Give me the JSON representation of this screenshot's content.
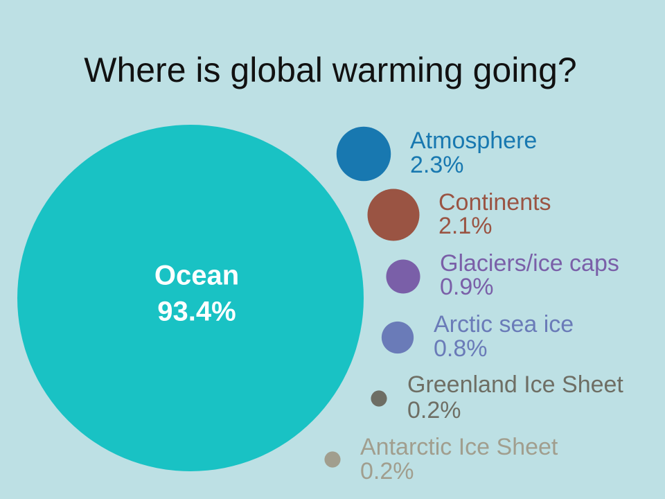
{
  "chart_data": {
    "type": "bubble",
    "title": "Where is global warming going?",
    "categories": [
      "Ocean",
      "Atmosphere",
      "Continents",
      "Glaciers/ice caps",
      "Arctic sea ice",
      "Greenland Ice Sheet",
      "Antarctic Ice Sheet"
    ],
    "values": [
      93.4,
      2.3,
      2.1,
      0.9,
      0.8,
      0.2,
      0.2
    ],
    "value_labels": [
      "93.4%",
      "2.3%",
      "2.1%",
      "0.9%",
      "0.8%",
      "0.2%",
      "0.2%"
    ],
    "colors": [
      "#19c2c4",
      "#1878b0",
      "#9a5443",
      "#7a5fa8",
      "#6a7bb8",
      "#6e6e64",
      "#a19e8e"
    ]
  }
}
